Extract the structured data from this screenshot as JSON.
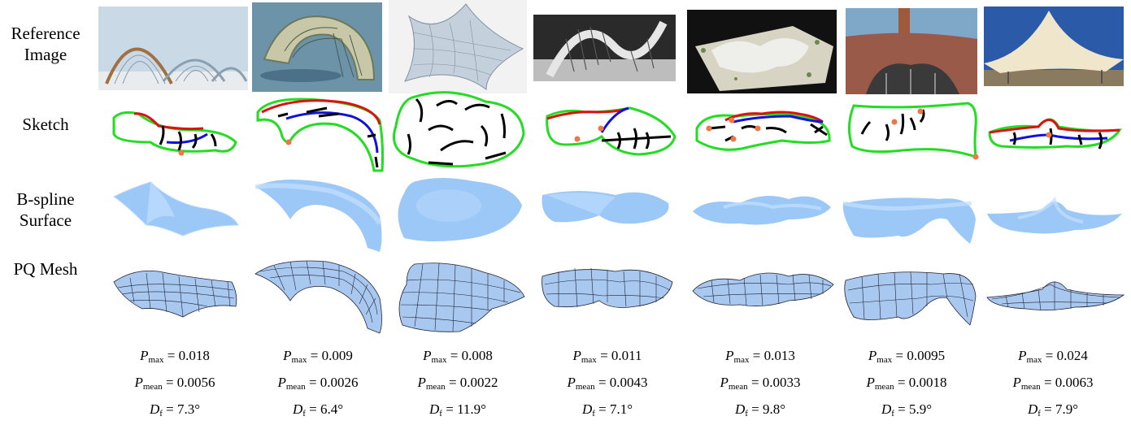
{
  "row_labels": {
    "reference": [
      "Reference",
      "Image"
    ],
    "sketch": [
      "Sketch"
    ],
    "surface": [
      "B-spline",
      "Surface"
    ],
    "mesh": [
      "PQ Mesh"
    ]
  },
  "metric_symbols": {
    "p": "P",
    "max": "max",
    "mean": "mean",
    "d": "D",
    "f": "f"
  },
  "examples": [
    {
      "pmax": "0.018",
      "pmean": "0.0056",
      "df": "7.3°"
    },
    {
      "pmax": "0.009",
      "pmean": "0.0026",
      "df": "6.4°"
    },
    {
      "pmax": "0.008",
      "pmean": "0.0022",
      "df": "11.9°"
    },
    {
      "pmax": "0.011",
      "pmean": "0.0043",
      "df": "7.1°"
    },
    {
      "pmax": "0.013",
      "pmean": "0.0033",
      "df": "9.8°"
    },
    {
      "pmax": "0.0095",
      "pmean": "0.0018",
      "df": "5.9°"
    },
    {
      "pmax": "0.024",
      "pmean": "0.0063",
      "df": "7.9°"
    }
  ],
  "colors": {
    "sketch_boundary": "#22dd22",
    "sketch_ridge": "#dd1111",
    "sketch_valley": "#1111dd",
    "sketch_strokes": "#000000",
    "sketch_points": "#ee7744",
    "surface_fill": "#9cc8f8",
    "mesh_fill": "#a8c8f0"
  }
}
